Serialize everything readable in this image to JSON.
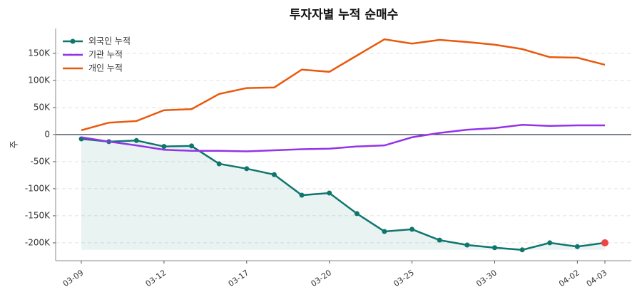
{
  "chart_data": {
    "type": "line",
    "title": "투자자별 누적 순매수",
    "y_label": "주",
    "categories": [
      "03-09",
      null,
      null,
      "03-12",
      null,
      null,
      "03-17",
      null,
      null,
      "03-20",
      null,
      null,
      "03-25",
      null,
      null,
      "03-30",
      null,
      null,
      "04-02",
      "04-03"
    ],
    "series": [
      {
        "name": "외국인 누적",
        "color": "#0f766e",
        "markers": true,
        "fill": true,
        "last_point_color": "#ef4444",
        "values": [
          -8000,
          -13000,
          -11000,
          -22000,
          -21000,
          -54000,
          -63000,
          -74000,
          -112000,
          -108000,
          -146000,
          -179000,
          -175000,
          -195000,
          -204000,
          -209000,
          -213000,
          -200000,
          -207000,
          -200000
        ]
      },
      {
        "name": "기관 누적",
        "color": "#9333ea",
        "values": [
          -5000,
          -13000,
          -20000,
          -28000,
          -30000,
          -30000,
          -31000,
          -29000,
          -27000,
          -26000,
          -22000,
          -20000,
          -5000,
          3000,
          9000,
          12000,
          18000,
          16000,
          17000,
          17000
        ]
      },
      {
        "name": "개인 누적",
        "color": "#ea580c",
        "values": [
          8000,
          22000,
          25000,
          45000,
          47000,
          75000,
          86000,
          87000,
          120000,
          116000,
          146000,
          176000,
          168000,
          175000,
          171000,
          166000,
          158000,
          143000,
          142000,
          129000
        ]
      }
    ],
    "ylim": [
      -233000,
      196000
    ],
    "yticks": [
      {
        "value": -200000,
        "label": "-200K"
      },
      {
        "value": -150000,
        "label": "-150K"
      },
      {
        "value": -100000,
        "label": "-100K"
      },
      {
        "value": -50000,
        "label": "-50K"
      },
      0,
      {
        "value": 50000,
        "label": "50K"
      },
      {
        "value": 100000,
        "label": "100K"
      },
      {
        "value": 150000,
        "label": "150K"
      }
    ],
    "grid": true,
    "legend": "upper left"
  }
}
